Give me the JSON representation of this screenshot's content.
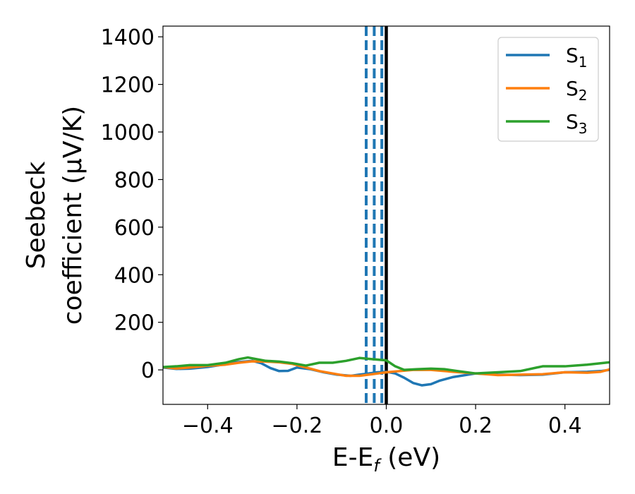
{
  "chart_data": {
    "type": "line",
    "xlabel": {
      "main": "E-E",
      "sub": "f",
      "tail": " (eV)"
    },
    "ylabel_lines": [
      "Seebeck",
      "coefficient  (μV/K)"
    ],
    "xlim": [
      -0.5,
      0.5
    ],
    "ylim": [
      -145,
      1445
    ],
    "xticks": [
      -0.4,
      -0.2,
      0.0,
      0.2,
      0.4
    ],
    "xtick_labels": [
      "−0.4",
      "−0.2",
      "0.0",
      "0.2",
      "0.4"
    ],
    "yticks": [
      0,
      200,
      400,
      600,
      800,
      1000,
      1200,
      1400
    ],
    "ytick_labels": [
      "0",
      "200",
      "400",
      "600",
      "800",
      "1000",
      "1200",
      "1400"
    ],
    "grid": false,
    "legend_position": "top-right",
    "series": [
      {
        "name": "S",
        "name_sub": "1",
        "color": "#1f77b4",
        "x": [
          -0.5,
          -0.47,
          -0.44,
          -0.4,
          -0.36,
          -0.33,
          -0.3,
          -0.28,
          -0.26,
          -0.24,
          -0.22,
          -0.2,
          -0.17,
          -0.14,
          -0.11,
          -0.08,
          -0.06,
          -0.04,
          -0.02,
          0.0,
          0.02,
          0.04,
          0.06,
          0.08,
          0.1,
          0.12,
          0.15,
          0.2,
          0.25,
          0.3,
          0.35,
          0.4,
          0.45,
          0.48,
          0.5
        ],
        "y": [
          10,
          4,
          5,
          12,
          24,
          33,
          38,
          28,
          8,
          -5,
          -4,
          10,
          3,
          -10,
          -20,
          -25,
          -20,
          -15,
          -10,
          -8,
          -15,
          -33,
          -55,
          -65,
          -60,
          -45,
          -30,
          -15,
          -20,
          -22,
          -20,
          -10,
          -8,
          -5,
          0
        ]
      },
      {
        "name": "S",
        "name_sub": "2",
        "color": "#ff7f0e",
        "x": [
          -0.5,
          -0.47,
          -0.44,
          -0.4,
          -0.36,
          -0.33,
          -0.3,
          -0.27,
          -0.24,
          -0.21,
          -0.18,
          -0.15,
          -0.12,
          -0.09,
          -0.06,
          -0.03,
          0.0,
          0.03,
          0.06,
          0.1,
          0.15,
          0.2,
          0.25,
          0.3,
          0.35,
          0.4,
          0.45,
          0.48,
          0.5
        ],
        "y": [
          12,
          6,
          10,
          17,
          22,
          30,
          36,
          35,
          32,
          25,
          10,
          -5,
          -15,
          -25,
          -25,
          -18,
          -10,
          -5,
          0,
          0,
          -8,
          -15,
          -22,
          -20,
          -18,
          -10,
          -12,
          -8,
          2
        ]
      },
      {
        "name": "S",
        "name_sub": "3",
        "color": "#2ca02c",
        "x": [
          -0.5,
          -0.47,
          -0.44,
          -0.4,
          -0.36,
          -0.33,
          -0.31,
          -0.29,
          -0.27,
          -0.24,
          -0.21,
          -0.18,
          -0.15,
          -0.12,
          -0.09,
          -0.06,
          -0.03,
          0.0,
          0.02,
          0.04,
          0.07,
          0.1,
          0.13,
          0.16,
          0.2,
          0.25,
          0.3,
          0.35,
          0.4,
          0.45,
          0.5
        ],
        "y": [
          12,
          15,
          20,
          20,
          30,
          45,
          52,
          45,
          38,
          35,
          28,
          18,
          30,
          30,
          38,
          50,
          45,
          40,
          15,
          0,
          3,
          5,
          3,
          -5,
          -15,
          -10,
          -5,
          15,
          15,
          22,
          32
        ]
      }
    ],
    "vertical_lines": [
      {
        "x": -0.045,
        "color": "#1f77b4",
        "style": "dashed"
      },
      {
        "x": -0.027,
        "color": "#1f77b4",
        "style": "dashed"
      },
      {
        "x": -0.01,
        "color": "#1f77b4",
        "style": "dashed"
      },
      {
        "x": 0.0,
        "color": "#000000",
        "style": "solid"
      }
    ]
  }
}
